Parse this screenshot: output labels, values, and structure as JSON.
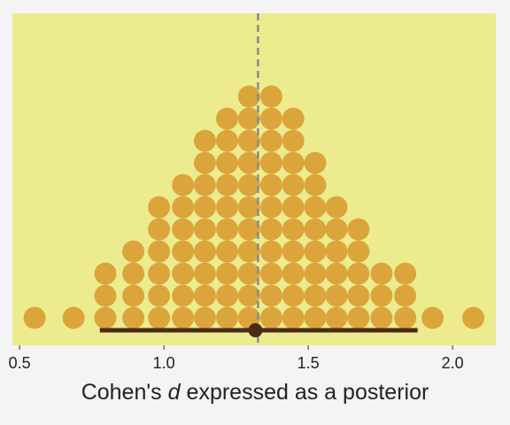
{
  "chart_data": {
    "type": "dotplot",
    "x": [
      0.552,
      0.687,
      0.797,
      0.894,
      0.983,
      1.066,
      1.142,
      1.219,
      1.295,
      1.372,
      1.448,
      1.524,
      1.598,
      1.674,
      1.754,
      1.836,
      1.931,
      2.072
    ],
    "counts": [
      1,
      1,
      3,
      4,
      6,
      7,
      9,
      10,
      11,
      11,
      10,
      8,
      6,
      5,
      3,
      3,
      1,
      1
    ],
    "color": "#dca53c",
    "panel_color": "#ecec8e",
    "xlim": [
      0.475,
      2.15
    ],
    "xticks": [
      0.5,
      {
        "value": 1,
        "label": "1.0"
      },
      1.5,
      {
        "value": 2,
        "label": "2.0"
      }
    ],
    "xlabel": {
      "before": "Cohen's",
      "italic": "d",
      "after": "expressed as a posterior"
    },
    "interval": {
      "lower": 0.778,
      "point": 1.317,
      "upper": 1.879,
      "color": "#4a2a18"
    },
    "reference_line": 1.326
  }
}
